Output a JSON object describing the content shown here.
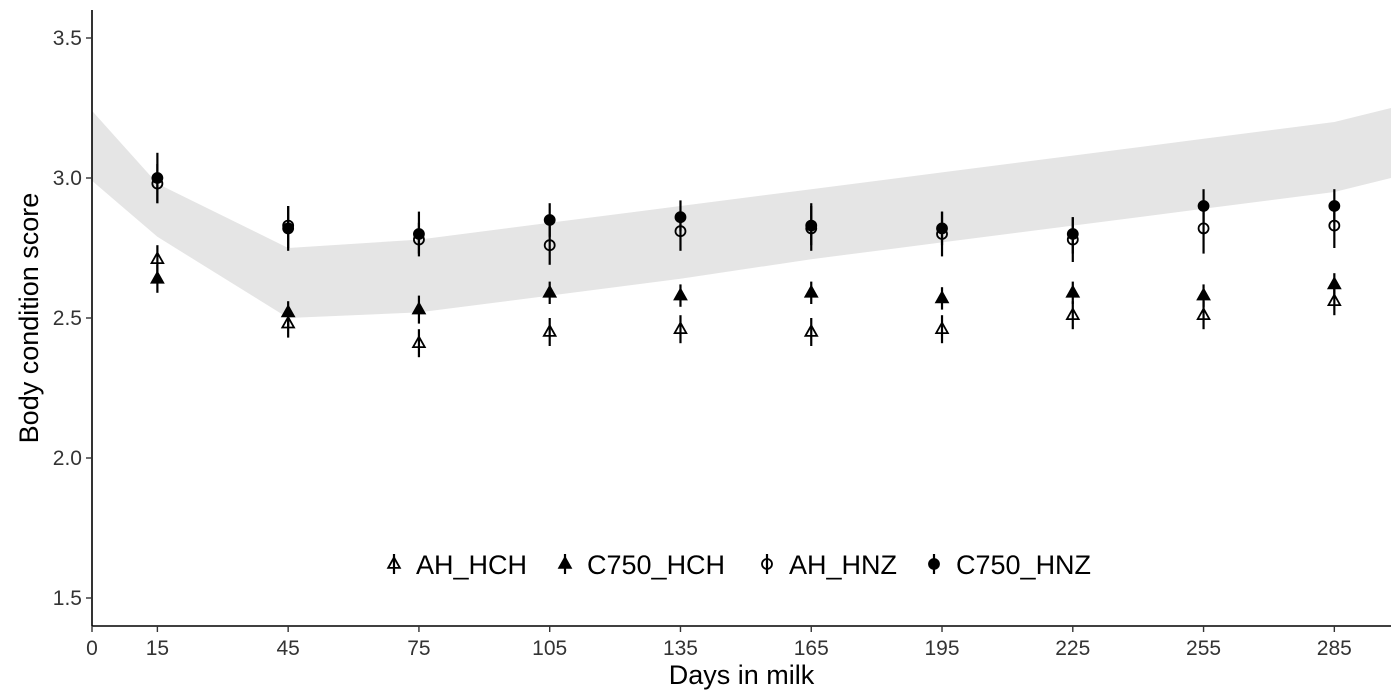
{
  "chart_data": {
    "type": "scatter",
    "xlabel": "Days in milk",
    "ylabel": "Body condition score",
    "xlim": [
      0,
      298
    ],
    "ylim": [
      1.4,
      3.6
    ],
    "x_ticks": [
      0,
      15,
      45,
      75,
      105,
      135,
      165,
      195,
      225,
      255,
      285
    ],
    "x_tick_labels": [
      "0",
      "15",
      "45",
      "75",
      "105",
      "135",
      "165",
      "195",
      "225",
      "255",
      "285"
    ],
    "y_ticks": [
      1.5,
      2.0,
      2.5,
      3.0,
      3.5
    ],
    "y_tick_labels": [
      "1.5",
      "2.0",
      "2.5",
      "3.0",
      "3.5"
    ],
    "grid": false,
    "legend_position": "bottom-center",
    "band": {
      "fill": "#e5e5e5",
      "x": [
        0,
        15,
        45,
        75,
        105,
        135,
        165,
        195,
        225,
        255,
        285,
        298
      ],
      "upper": [
        3.24,
        2.98,
        2.75,
        2.78,
        2.84,
        2.9,
        2.96,
        3.02,
        3.08,
        3.14,
        3.2,
        3.25
      ],
      "lower": [
        2.99,
        2.79,
        2.5,
        2.52,
        2.58,
        2.64,
        2.71,
        2.77,
        2.83,
        2.89,
        2.95,
        3.0
      ]
    },
    "series": [
      {
        "name": "AH_HCH",
        "marker": "triangle-open",
        "x": [
          15,
          45,
          75,
          105,
          135,
          165,
          195,
          225,
          255,
          285
        ],
        "y": [
          2.71,
          2.48,
          2.41,
          2.45,
          2.46,
          2.45,
          2.46,
          2.51,
          2.51,
          2.56
        ],
        "lower": [
          2.66,
          2.43,
          2.36,
          2.4,
          2.41,
          2.4,
          2.41,
          2.46,
          2.46,
          2.51
        ],
        "upper": [
          2.76,
          2.53,
          2.46,
          2.5,
          2.51,
          2.5,
          2.51,
          2.56,
          2.56,
          2.61
        ]
      },
      {
        "name": "C750_HCH",
        "marker": "triangle-filled",
        "x": [
          15,
          45,
          75,
          105,
          135,
          165,
          195,
          225,
          255,
          285
        ],
        "y": [
          2.64,
          2.52,
          2.53,
          2.59,
          2.58,
          2.59,
          2.57,
          2.59,
          2.58,
          2.62
        ],
        "lower": [
          2.59,
          2.47,
          2.48,
          2.55,
          2.54,
          2.55,
          2.53,
          2.55,
          2.54,
          2.58
        ],
        "upper": [
          2.69,
          2.56,
          2.58,
          2.63,
          2.62,
          2.63,
          2.61,
          2.63,
          2.62,
          2.66
        ]
      },
      {
        "name": "AH_HNZ",
        "marker": "circle-open",
        "x": [
          15,
          45,
          75,
          105,
          135,
          165,
          195,
          225,
          255,
          285
        ],
        "y": [
          2.98,
          2.83,
          2.78,
          2.76,
          2.81,
          2.82,
          2.8,
          2.78,
          2.82,
          2.83
        ],
        "lower": [
          2.91,
          2.74,
          2.73,
          2.69,
          2.74,
          2.74,
          2.72,
          2.7,
          2.73,
          2.75
        ],
        "upper": [
          3.05,
          2.9,
          2.84,
          2.83,
          2.88,
          2.9,
          2.88,
          2.86,
          2.91,
          2.92
        ]
      },
      {
        "name": "C750_HNZ",
        "marker": "circle-filled",
        "x": [
          15,
          45,
          75,
          105,
          135,
          165,
          195,
          225,
          255,
          285
        ],
        "y": [
          3.0,
          2.82,
          2.8,
          2.85,
          2.86,
          2.83,
          2.82,
          2.8,
          2.9,
          2.9
        ],
        "lower": [
          2.91,
          2.75,
          2.72,
          2.79,
          2.81,
          2.76,
          2.76,
          2.73,
          2.84,
          2.84
        ],
        "upper": [
          3.09,
          2.9,
          2.88,
          2.91,
          2.92,
          2.91,
          2.88,
          2.86,
          2.96,
          2.96
        ]
      }
    ]
  }
}
